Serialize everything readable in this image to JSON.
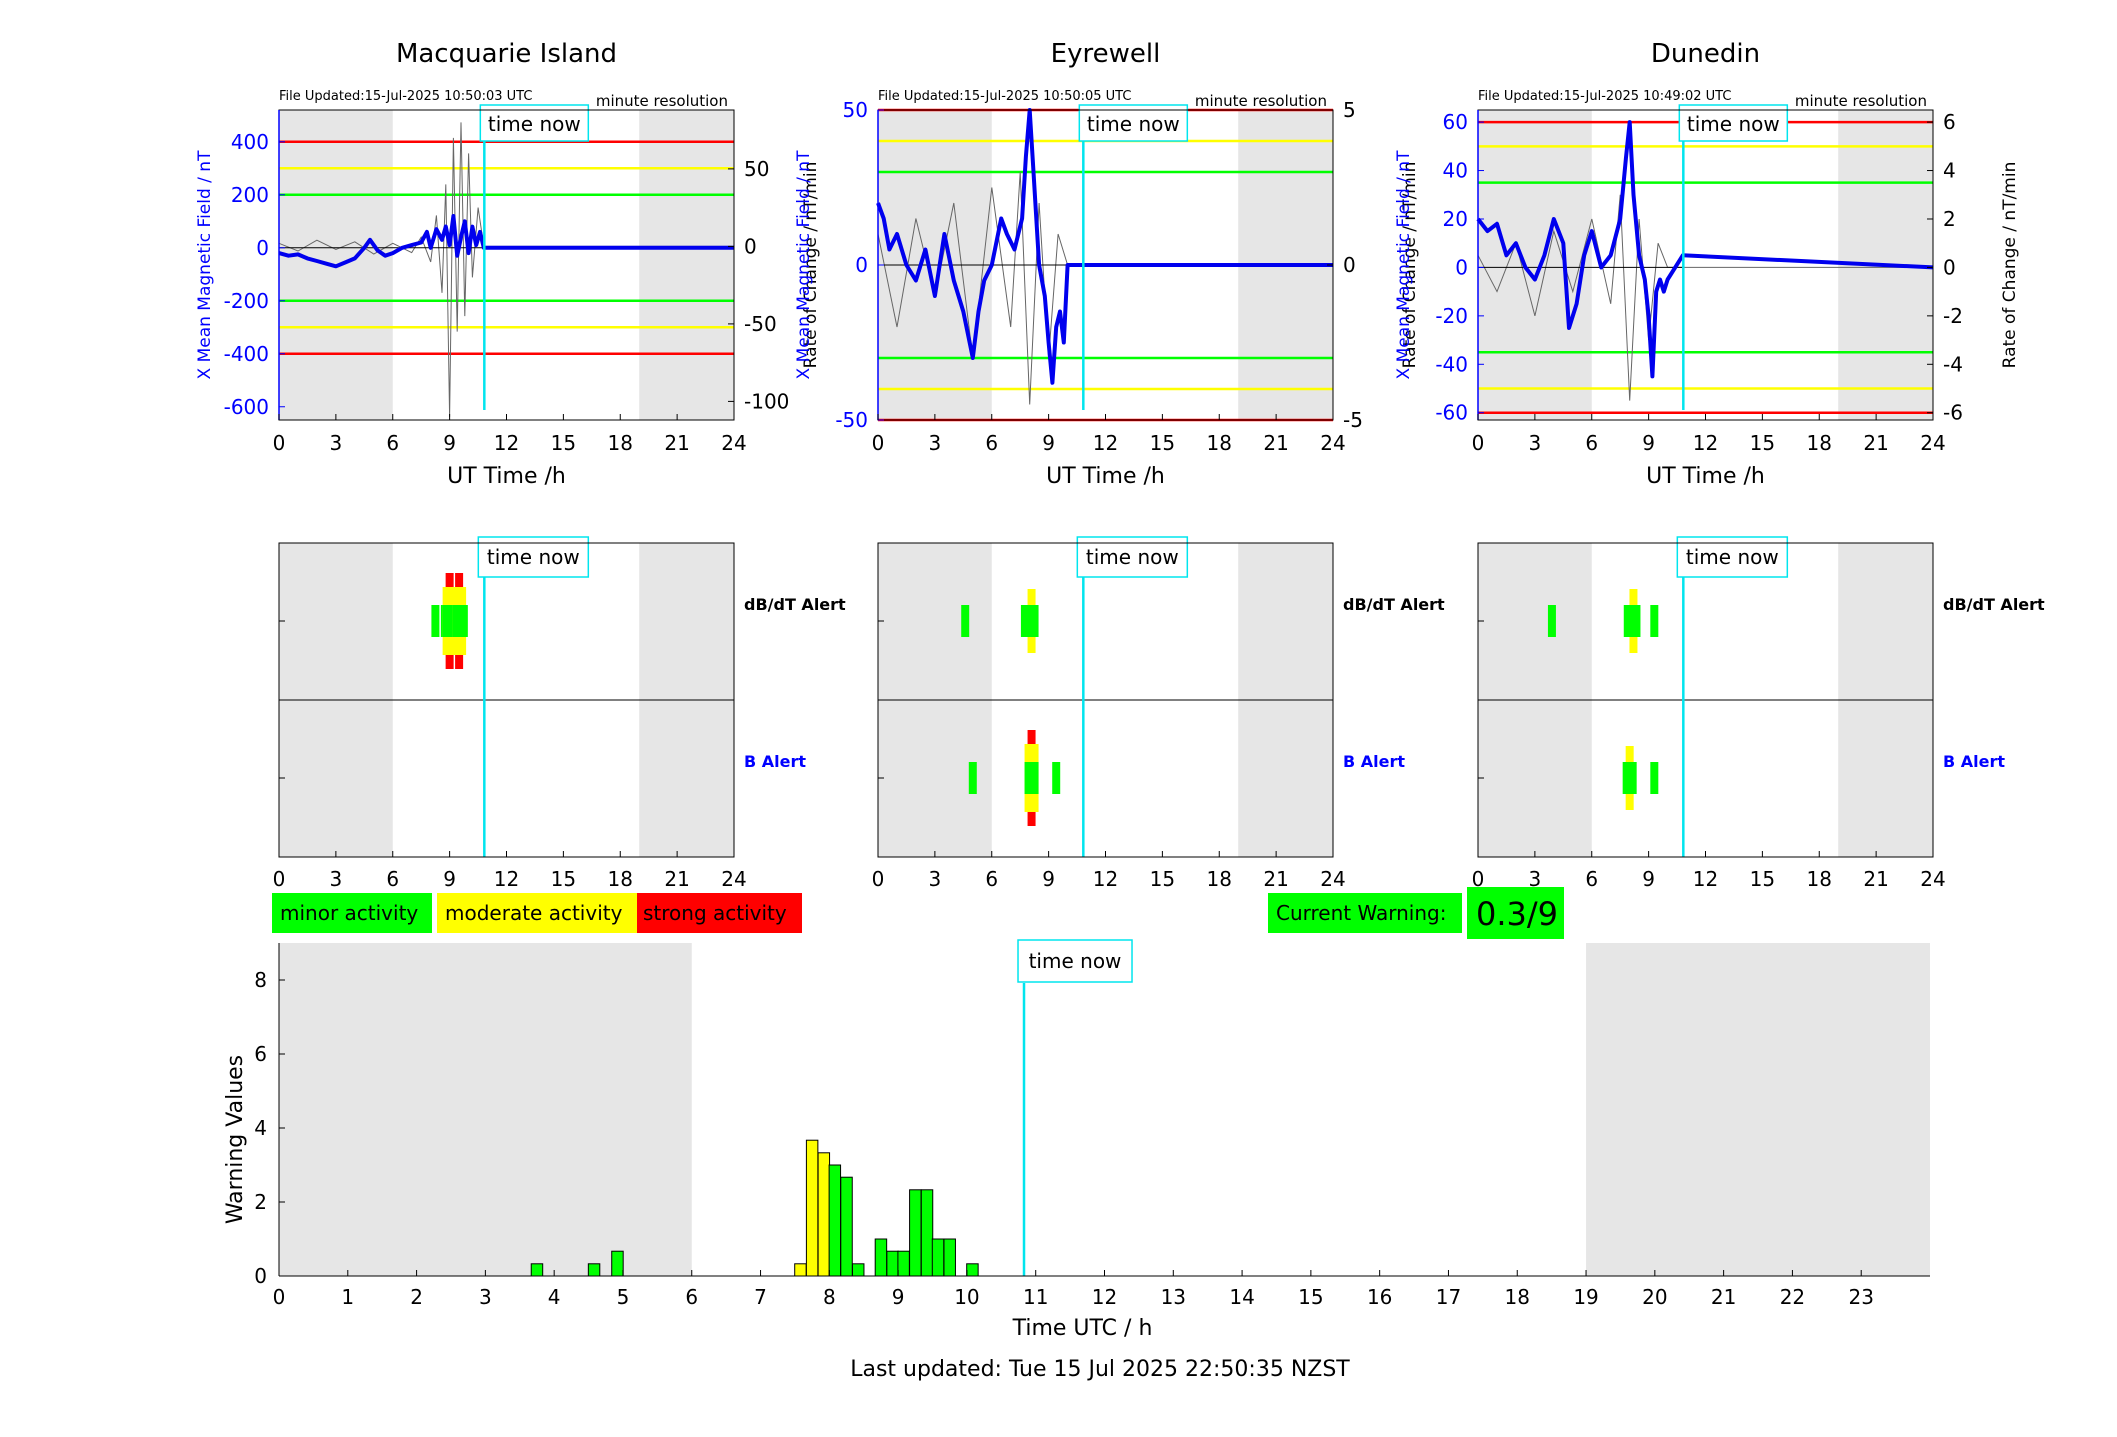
{
  "colors": {
    "shade": "#e6e6e6",
    "field": "#0000ee",
    "rate": "#666666",
    "red": "#ff0000",
    "yellow": "#ffff00",
    "green": "#00ff00",
    "cyan": "#00e5ee",
    "b_alert_label": "#0000ff"
  },
  "labels": {
    "time_now": "time now",
    "minute_resolution": "minute resolution",
    "x_axis": "UT Time /h",
    "y_left": "X Mean Magnetic Field / nT",
    "y_right": "Rate of Change / nT/min",
    "dbdt_alert": "dB/dT Alert",
    "b_alert": "B Alert",
    "legend_minor": "minor activity",
    "legend_moderate": "moderate activity",
    "legend_strong": "strong activity",
    "current_warning_label": "Current Warning:",
    "current_warning_value": "0.3/9",
    "bottom_x_axis": "Time UTC / h",
    "bottom_y_axis": "Warning Values",
    "last_updated": "Last updated: Tue 15 Jul 2025 22:50:35 NZST"
  },
  "stations": [
    {
      "name": "Macquarie Island",
      "file_updated": "File Updated:15-Jul-2025 10:50:03 UTC",
      "left_ticks": [
        "400",
        "200",
        "0",
        "-200",
        "-400",
        "-600"
      ],
      "right_ticks": [
        "50",
        "0",
        "-50",
        "-100"
      ]
    },
    {
      "name": "Eyrewell",
      "file_updated": "File Updated:15-Jul-2025 10:50:05 UTC",
      "left_ticks": [
        "50",
        "0",
        "-50"
      ],
      "right_ticks": [
        "5",
        "0",
        "-5"
      ]
    },
    {
      "name": "Dunedin",
      "file_updated": "File Updated:15-Jul-2025 10:49:02 UTC",
      "left_ticks": [
        "60",
        "40",
        "20",
        "0",
        "-20",
        "-40",
        "-60"
      ],
      "right_ticks": [
        "6",
        "4",
        "2",
        "0",
        "-2",
        "-4",
        "-6"
      ]
    }
  ],
  "x_ticks_24h": [
    "0",
    "3",
    "6",
    "9",
    "12",
    "15",
    "18",
    "21",
    "24"
  ],
  "chart_data": [
    {
      "type": "line",
      "station": "Macquarie Island",
      "xlabel": "UT Time /h",
      "xlim": [
        0,
        24
      ],
      "ylabel": "X Mean Magnetic Field / nT",
      "ylim": [
        -650,
        520
      ],
      "ylabel_right": "Rate of Change / nT/min",
      "ylim_right": [
        -112,
        88
      ],
      "time_now": 10.83,
      "shaded_h": [
        [
          0,
          6
        ],
        [
          19,
          24
        ]
      ],
      "thresholds_field": {
        "red": [
          400,
          -400
        ],
        "yellow": [
          300,
          -300
        ],
        "green": [
          200,
          -200
        ]
      },
      "series": [
        {
          "name": "X Mean Magnetic Field / nT",
          "x": [
            0,
            0.5,
            1,
            1.5,
            2,
            2.5,
            3,
            3.5,
            4,
            4.5,
            4.8,
            5.2,
            5.6,
            6,
            6.5,
            7,
            7.5,
            7.8,
            8,
            8.3,
            8.6,
            8.8,
            9,
            9.2,
            9.4,
            9.6,
            9.8,
            10,
            10.2,
            10.4,
            10.6,
            10.8,
            24
          ],
          "y": [
            -20,
            -30,
            -25,
            -40,
            -50,
            -60,
            -70,
            -55,
            -40,
            0,
            30,
            -10,
            -30,
            -20,
            0,
            10,
            20,
            60,
            0,
            70,
            30,
            80,
            10,
            120,
            -30,
            40,
            100,
            -20,
            80,
            10,
            60,
            0,
            0
          ]
        },
        {
          "name": "Rate of Change / nT/min",
          "x": [
            0,
            1,
            2,
            3,
            4,
            5,
            6,
            7,
            7.5,
            8,
            8.3,
            8.6,
            8.8,
            9,
            9.2,
            9.4,
            9.6,
            9.8,
            10,
            10.2,
            10.5,
            10.8,
            24
          ],
          "y": [
            2,
            -3,
            4,
            -2,
            3,
            -5,
            2,
            -4,
            6,
            -10,
            20,
            -30,
            40,
            -110,
            70,
            -55,
            80,
            -45,
            60,
            -20,
            25,
            0,
            0
          ]
        }
      ]
    },
    {
      "type": "line",
      "station": "Eyrewell",
      "xlabel": "UT Time /h",
      "xlim": [
        0,
        24
      ],
      "ylabel": "X Mean Magnetic Field / nT",
      "ylim": [
        -50,
        50
      ],
      "ylabel_right": "Rate of Change / nT/min",
      "ylim_right": [
        -5,
        5
      ],
      "time_now": 10.83,
      "shaded_h": [
        [
          0,
          6
        ],
        [
          19,
          24
        ]
      ],
      "thresholds_field": {
        "red": [
          50,
          -50
        ],
        "yellow": [
          40,
          -40
        ],
        "green": [
          30,
          -30
        ]
      },
      "series": [
        {
          "name": "X Mean Magnetic Field / nT",
          "x": [
            0,
            0.3,
            0.6,
            1,
            1.5,
            2,
            2.5,
            3,
            3.5,
            4,
            4.5,
            5,
            5.3,
            5.6,
            6,
            6.5,
            6.8,
            7.2,
            7.6,
            7.8,
            8,
            8.2,
            8.5,
            8.8,
            9,
            9.2,
            9.4,
            9.6,
            9.8,
            10,
            24
          ],
          "y": [
            20,
            15,
            5,
            10,
            0,
            -5,
            5,
            -10,
            10,
            -5,
            -15,
            -30,
            -15,
            -5,
            0,
            15,
            10,
            5,
            15,
            35,
            50,
            30,
            0,
            -10,
            -25,
            -38,
            -20,
            -15,
            -25,
            0,
            0
          ]
        },
        {
          "name": "Rate of Change / nT/min",
          "x": [
            0,
            1,
            2,
            3,
            4,
            5,
            6,
            7,
            7.5,
            8,
            8.5,
            9,
            9.5,
            10,
            24
          ],
          "y": [
            1,
            -2,
            1.5,
            -1,
            2,
            -3,
            2.5,
            -2,
            3,
            -4.5,
            2,
            -3,
            1,
            0,
            0
          ]
        }
      ]
    },
    {
      "type": "line",
      "station": "Dunedin",
      "xlabel": "UT Time /h",
      "xlim": [
        0,
        24
      ],
      "ylabel": "X Mean Magnetic Field / nT",
      "ylim": [
        -63,
        65
      ],
      "ylabel_right": "Rate of Change / nT/min",
      "ylim_right": [
        -6.3,
        6.5
      ],
      "time_now": 10.83,
      "shaded_h": [
        [
          0,
          6
        ],
        [
          19,
          24
        ]
      ],
      "thresholds_field": {
        "red": [
          60,
          -60
        ],
        "yellow": [
          50,
          -50
        ],
        "green": [
          35,
          -35
        ]
      },
      "series": [
        {
          "name": "X Mean Magnetic Field / nT",
          "x": [
            0,
            0.5,
            1,
            1.5,
            2,
            2.5,
            3,
            3.5,
            4,
            4.5,
            4.8,
            5.2,
            5.6,
            6,
            6.5,
            7,
            7.5,
            7.8,
            8,
            8.2,
            8.5,
            8.8,
            9,
            9.2,
            9.4,
            9.6,
            9.8,
            10,
            10.4,
            10.8,
            24
          ],
          "y": [
            20,
            15,
            18,
            5,
            10,
            0,
            -5,
            5,
            20,
            10,
            -25,
            -15,
            5,
            15,
            0,
            5,
            20,
            45,
            60,
            30,
            5,
            -5,
            -20,
            -45,
            -10,
            -5,
            -10,
            -5,
            0,
            5,
            0
          ]
        },
        {
          "name": "Rate of Change / nT/min",
          "x": [
            0,
            1,
            2,
            3,
            4,
            5,
            6,
            7,
            7.5,
            8,
            8.5,
            9,
            9.5,
            10,
            24
          ],
          "y": [
            0.5,
            -1,
            1,
            -2,
            1.5,
            -1,
            2,
            -1.5,
            3,
            -5.5,
            2,
            -3,
            1,
            0,
            0
          ]
        }
      ]
    },
    {
      "type": "bar",
      "title": "",
      "xlabel": "Time UTC / h",
      "ylabel": "Warning Values",
      "xlim": [
        0,
        24
      ],
      "ylim": [
        0,
        9
      ],
      "time_now": 10.83,
      "shaded_h": [
        [
          0,
          6
        ],
        [
          19,
          24
        ]
      ],
      "x_ticks": [
        "0",
        "1",
        "2",
        "3",
        "4",
        "5",
        "6",
        "7",
        "8",
        "9",
        "10",
        "11",
        "12",
        "13",
        "14",
        "15",
        "16",
        "17",
        "18",
        "19",
        "20",
        "21",
        "22",
        "23"
      ],
      "y_ticks": [
        "0",
        "2",
        "4",
        "6",
        "8"
      ],
      "bars": [
        {
          "x": 3.75,
          "value": 0.33,
          "color": "green"
        },
        {
          "x": 4.58,
          "value": 0.33,
          "color": "green"
        },
        {
          "x": 4.92,
          "value": 0.67,
          "color": "green"
        },
        {
          "x": 7.58,
          "value": 0.33,
          "color": "yellow"
        },
        {
          "x": 7.75,
          "value": 3.67,
          "color": "yellow"
        },
        {
          "x": 7.92,
          "value": 3.33,
          "color": "yellow"
        },
        {
          "x": 8.08,
          "value": 3.0,
          "color": "green"
        },
        {
          "x": 8.25,
          "value": 2.67,
          "color": "green"
        },
        {
          "x": 8.42,
          "value": 0.33,
          "color": "green"
        },
        {
          "x": 8.75,
          "value": 1.0,
          "color": "green"
        },
        {
          "x": 8.92,
          "value": 0.67,
          "color": "green"
        },
        {
          "x": 9.08,
          "value": 0.67,
          "color": "green"
        },
        {
          "x": 9.25,
          "value": 2.33,
          "color": "green"
        },
        {
          "x": 9.42,
          "value": 2.33,
          "color": "green"
        },
        {
          "x": 9.58,
          "value": 1.0,
          "color": "green"
        },
        {
          "x": 9.75,
          "value": 1.0,
          "color": "green"
        },
        {
          "x": 10.08,
          "value": 0.33,
          "color": "green"
        }
      ]
    }
  ],
  "alerts": [
    {
      "station": "Macquarie Island",
      "dbdt": [
        {
          "x": 8.25,
          "level": "green"
        },
        {
          "x": 8.75,
          "level": "green"
        },
        {
          "x": 9.0,
          "level": "red"
        },
        {
          "x": 9.25,
          "level": "green"
        },
        {
          "x": 9.5,
          "level": "red"
        },
        {
          "x": 9.75,
          "level": "green"
        }
      ],
      "b": []
    },
    {
      "station": "Eyrewell",
      "dbdt": [
        {
          "x": 4.6,
          "level": "green"
        },
        {
          "x": 7.75,
          "level": "green"
        },
        {
          "x": 8.1,
          "level": "yellow"
        }
      ],
      "b": [
        {
          "x": 5.0,
          "level": "green"
        },
        {
          "x": 8.1,
          "level": "red"
        },
        {
          "x": 9.4,
          "level": "green"
        }
      ]
    },
    {
      "station": "Dunedin",
      "dbdt": [
        {
          "x": 3.9,
          "level": "green"
        },
        {
          "x": 7.9,
          "level": "green"
        },
        {
          "x": 8.2,
          "level": "yellow"
        },
        {
          "x": 9.3,
          "level": "green"
        }
      ],
      "b": [
        {
          "x": 8.0,
          "level": "yellow"
        },
        {
          "x": 9.3,
          "level": "green"
        }
      ]
    }
  ]
}
